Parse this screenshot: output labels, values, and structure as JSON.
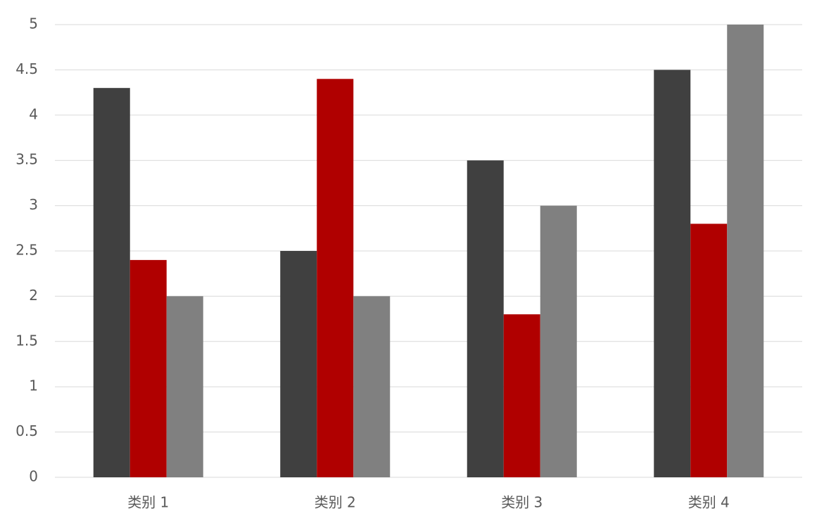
{
  "chart_data": {
    "type": "bar",
    "title": "",
    "xlabel": "",
    "ylabel": "",
    "categories": [
      "类别 1",
      "类别 2",
      "类别 3",
      "类别 4"
    ],
    "series": [
      {
        "values": [
          4.3,
          2.5,
          3.5,
          4.5
        ],
        "color": "#404040"
      },
      {
        "values": [
          2.4,
          4.4,
          1.8,
          2.8
        ],
        "color": "#b00000"
      },
      {
        "values": [
          2.0,
          2.0,
          3.0,
          5.0
        ],
        "color": "#808080"
      }
    ],
    "ylim": [
      0,
      5
    ],
    "yticks": [
      "0",
      "0.5",
      "1",
      "1.5",
      "2",
      "2.5",
      "3",
      "3.5",
      "4",
      "4.5",
      "5"
    ],
    "grid": true,
    "legend": "none",
    "gridline_color": "#d9d9d9"
  }
}
